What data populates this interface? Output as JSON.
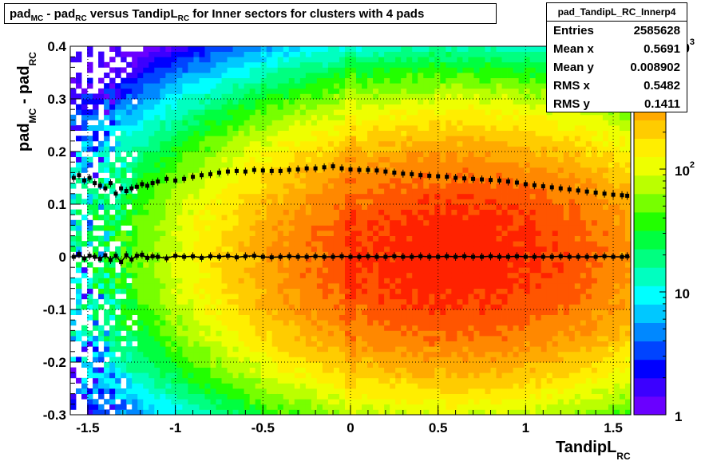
{
  "title": {
    "parts": [
      "pad",
      "MC",
      " - pad",
      "RC",
      " versus TandipL",
      "RC",
      " for Inner sectors for clusters with 4 pads"
    ]
  },
  "stats": {
    "name": "pad_TandipL_RC_Innerp4",
    "rows": [
      {
        "label": "Entries",
        "value": "2585628"
      },
      {
        "label": "Mean x",
        "value": "0.5691"
      },
      {
        "label": "Mean y",
        "value": "0.008902"
      },
      {
        "label": "RMS x",
        "value": "0.5482"
      },
      {
        "label": "RMS y",
        "value": "0.1411"
      }
    ]
  },
  "chart_data": {
    "type": "heatmap",
    "xlabel": {
      "main": "TandipL",
      "sub": "RC"
    },
    "ylabel": {
      "main": "pad",
      "sub1": "MC",
      "mid": " - pad",
      "sub2": "RC"
    },
    "xlim": [
      -1.6,
      1.6
    ],
    "ylim": [
      -0.3,
      0.4
    ],
    "x_ticks": [
      -1.5,
      -1,
      -0.5,
      0,
      0.5,
      1,
      1.5
    ],
    "x_tick_labels": [
      "-1.5",
      "-1",
      "-0.5",
      "0",
      "0.5",
      "1",
      "1.5"
    ],
    "y_ticks": [
      -0.3,
      -0.2,
      -0.1,
      0,
      0.1,
      0.2,
      0.3,
      0.4
    ],
    "y_tick_labels": [
      "-0.3",
      "-0.2",
      "-0.1",
      "0",
      "0.1",
      "0.2",
      "0.3",
      "0.4"
    ],
    "grid": true,
    "z_scale": "log",
    "zlim": [
      1,
      1000
    ],
    "z_tick_labels": [
      {
        "base": "1",
        "exp": "",
        "value": 1
      },
      {
        "base": "10",
        "exp": "",
        "value": 10
      },
      {
        "base": "10",
        "exp": "2",
        "value": 100
      },
      {
        "base": "10",
        "exp": "3",
        "value": 1000
      }
    ],
    "palette": [
      "#6a00ff",
      "#3b00ff",
      "#0000ff",
      "#0044ff",
      "#0088ff",
      "#00c8ff",
      "#00ffff",
      "#00ffc0",
      "#00ff80",
      "#00ff40",
      "#22ff00",
      "#77ff00",
      "#bbff00",
      "#eeff00",
      "#ffee00",
      "#ffcc00",
      "#ffaa00",
      "#ff8800",
      "#ff5500",
      "#ff2200"
    ],
    "density_model": {
      "peak": {
        "x": 0.6,
        "y": 0.0,
        "sx": 0.75,
        "sy": 0.14,
        "amplitude": 900
      },
      "dip_x": 0.0
    },
    "series": [
      {
        "name": "mean",
        "x": [
          -1.58,
          -1.55,
          -1.52,
          -1.49,
          -1.46,
          -1.43,
          -1.4,
          -1.37,
          -1.34,
          -1.31,
          -1.28,
          -1.25,
          -1.22,
          -1.19,
          -1.16,
          -1.13,
          -1.1,
          -1.05,
          -1.0,
          -0.95,
          -0.9,
          -0.85,
          -0.8,
          -0.75,
          -0.7,
          -0.65,
          -0.6,
          -0.55,
          -0.5,
          -0.45,
          -0.4,
          -0.35,
          -0.3,
          -0.25,
          -0.2,
          -0.15,
          -0.1,
          -0.05,
          0.0,
          0.05,
          0.1,
          0.15,
          0.2,
          0.25,
          0.3,
          0.35,
          0.4,
          0.45,
          0.5,
          0.55,
          0.6,
          0.65,
          0.7,
          0.75,
          0.8,
          0.85,
          0.9,
          0.95,
          1.0,
          1.05,
          1.1,
          1.15,
          1.2,
          1.25,
          1.3,
          1.35,
          1.4,
          1.45,
          1.5,
          1.55,
          1.58
        ],
        "y": [
          0.0,
          0.005,
          -0.003,
          0.002,
          0.0,
          -0.004,
          0.003,
          -0.006,
          0.002,
          -0.01,
          0.003,
          -0.005,
          0.002,
          0.004,
          -0.002,
          0.001,
          0.0,
          -0.003,
          0.002,
          0.0,
          0.001,
          -0.002,
          0.001,
          0.0,
          0.002,
          -0.001,
          0.001,
          0.002,
          0.0,
          -0.001,
          0.0,
          0.001,
          0.0,
          0.0,
          0.001,
          0.0,
          0.0,
          0.001,
          0.0,
          0.0,
          0.001,
          0.0,
          0.0,
          0.001,
          0.0,
          0.0,
          0.001,
          0.0,
          0.0,
          0.001,
          0.0,
          0.001,
          0.0,
          0.0,
          0.001,
          0.0,
          0.0,
          0.001,
          0.0,
          0.0,
          0.0,
          0.0,
          0.001,
          0.0,
          0.0,
          0.0,
          0.0,
          0.001,
          0.0,
          0.0,
          0.001
        ]
      },
      {
        "name": "rms",
        "x": [
          -1.58,
          -1.55,
          -1.52,
          -1.49,
          -1.46,
          -1.43,
          -1.4,
          -1.37,
          -1.34,
          -1.31,
          -1.28,
          -1.25,
          -1.22,
          -1.19,
          -1.16,
          -1.13,
          -1.1,
          -1.05,
          -1.0,
          -0.95,
          -0.9,
          -0.85,
          -0.8,
          -0.75,
          -0.7,
          -0.65,
          -0.6,
          -0.55,
          -0.5,
          -0.45,
          -0.4,
          -0.35,
          -0.3,
          -0.25,
          -0.2,
          -0.15,
          -0.1,
          -0.05,
          0.0,
          0.05,
          0.1,
          0.15,
          0.2,
          0.25,
          0.3,
          0.35,
          0.4,
          0.45,
          0.5,
          0.55,
          0.6,
          0.65,
          0.7,
          0.75,
          0.8,
          0.85,
          0.9,
          0.95,
          1.0,
          1.05,
          1.1,
          1.15,
          1.2,
          1.25,
          1.3,
          1.35,
          1.4,
          1.45,
          1.5,
          1.55,
          1.58
        ],
        "y": [
          0.15,
          0.155,
          0.145,
          0.15,
          0.14,
          0.135,
          0.13,
          0.14,
          0.12,
          0.13,
          0.125,
          0.13,
          0.133,
          0.138,
          0.135,
          0.14,
          0.143,
          0.148,
          0.145,
          0.148,
          0.152,
          0.155,
          0.157,
          0.16,
          0.162,
          0.163,
          0.162,
          0.165,
          0.164,
          0.163,
          0.163,
          0.165,
          0.166,
          0.168,
          0.168,
          0.17,
          0.172,
          0.168,
          0.166,
          0.165,
          0.165,
          0.164,
          0.162,
          0.16,
          0.158,
          0.157,
          0.155,
          0.154,
          0.153,
          0.152,
          0.15,
          0.149,
          0.148,
          0.147,
          0.146,
          0.145,
          0.143,
          0.141,
          0.138,
          0.136,
          0.134,
          0.132,
          0.13,
          0.128,
          0.126,
          0.124,
          0.122,
          0.12,
          0.118,
          0.117,
          0.116
        ]
      }
    ]
  }
}
